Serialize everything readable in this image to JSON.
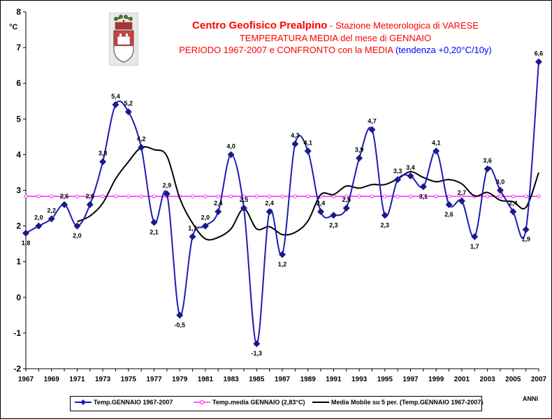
{
  "title": {
    "line1_main": "Centro Geofisico Prealpino",
    "line1_sub": " - Stazione Meteorologica di VARESE",
    "line2": "TEMPERATURA MEDIA del mese di GENNAIO",
    "line3_red": "PERIODO 1967-2007 e CONFRONTO con la MEDIA ",
    "line3_blue": "(tendenza +0,20°C/10y)"
  },
  "colors": {
    "series_temp": "#1c1cb4",
    "series_mean": "#ff33ff",
    "series_moving": "#000000"
  },
  "chart_data": {
    "type": "line",
    "xlabel": "ANNI",
    "ylabel": "°C",
    "ylim": [
      -2,
      8
    ],
    "yticks": [
      -2,
      -1,
      0,
      1,
      2,
      3,
      4,
      5,
      6,
      7,
      8
    ],
    "xticks": [
      1967,
      1969,
      1971,
      1973,
      1975,
      1977,
      1979,
      1981,
      1983,
      1985,
      1987,
      1989,
      1991,
      1993,
      1995,
      1997,
      1999,
      2001,
      2003,
      2005,
      2007
    ],
    "grid": false,
    "legend": "bottom",
    "series": [
      {
        "name": "Temp.GENNAIO 1967-2007",
        "x": [
          1967,
          1968,
          1969,
          1970,
          1971,
          1972,
          1973,
          1974,
          1975,
          1976,
          1977,
          1978,
          1979,
          1980,
          1981,
          1982,
          1983,
          1984,
          1985,
          1986,
          1987,
          1988,
          1989,
          1990,
          1991,
          1992,
          1993,
          1994,
          1995,
          1996,
          1997,
          1998,
          1999,
          2000,
          2001,
          2002,
          2003,
          2004,
          2005,
          2006,
          2007
        ],
        "values": [
          1.8,
          2.0,
          2.2,
          2.6,
          2.0,
          2.6,
          3.8,
          5.4,
          5.2,
          4.2,
          2.1,
          2.9,
          -0.5,
          1.7,
          2.0,
          2.4,
          4.0,
          2.5,
          -1.3,
          2.4,
          1.2,
          4.3,
          4.1,
          2.4,
          2.3,
          2.5,
          3.9,
          4.7,
          2.3,
          3.3,
          3.4,
          3.1,
          4.1,
          2.6,
          2.7,
          1.7,
          3.6,
          3.0,
          2.4,
          1.9,
          6.6
        ],
        "labels": [
          "1,8",
          "2,0",
          "2,2",
          "2,6",
          "2,0",
          "2,6",
          "3,8",
          "5,4",
          "5,2",
          "4,2",
          "2,1",
          "2,9",
          "-0,5",
          "1,7",
          "2,0",
          "2,4",
          "4,0",
          "2,5",
          "-1,3",
          "2,4",
          "1,2",
          "4,3",
          "4,1",
          "2,4",
          "2,3",
          "2,5",
          "3,9",
          "4,7",
          "2,3",
          "3,3",
          "3,4",
          "3,1",
          "4,1",
          "2,6",
          "2,7",
          "1,7",
          "3,6",
          "3,0",
          "2,4",
          "1,9",
          "6,6"
        ]
      },
      {
        "name": "Temp.media GENNAIO (2,83°C)",
        "x": [
          1967,
          2007
        ],
        "values": [
          2.83,
          2.83
        ]
      },
      {
        "name": "Media Mobile su 5 per. (Temp.GENNAIO 1967-2007)",
        "x": [
          1971,
          1972,
          1973,
          1974,
          1975,
          1976,
          1977,
          1978,
          1979,
          1980,
          1981,
          1982,
          1983,
          1984,
          1985,
          1986,
          1987,
          1988,
          1989,
          1990,
          1991,
          1992,
          1993,
          1994,
          1995,
          1996,
          1997,
          1998,
          1999,
          2000,
          2001,
          2002,
          2003,
          2004,
          2005,
          2006,
          2007
        ],
        "values": [
          2.12,
          2.28,
          2.64,
          3.32,
          3.8,
          4.2,
          4.14,
          3.96,
          2.78,
          2.08,
          1.64,
          1.68,
          1.92,
          2.48,
          1.92,
          1.98,
          1.76,
          1.82,
          2.14,
          2.88,
          2.88,
          3.12,
          3.06,
          3.16,
          3.16,
          3.32,
          3.52,
          3.36,
          3.24,
          3.3,
          3.18,
          2.84,
          2.94,
          2.72,
          2.68,
          2.52,
          3.5
        ]
      }
    ]
  },
  "legend": {
    "temp": "Temp.GENNAIO 1967-2007",
    "mean": "Temp.media GENNAIO (2,83°C)",
    "moving": "Media Mobile su 5 per. (Temp.GENNAIO 1967-2007)"
  },
  "xlabel": "ANNI",
  "ylabel": "°C"
}
